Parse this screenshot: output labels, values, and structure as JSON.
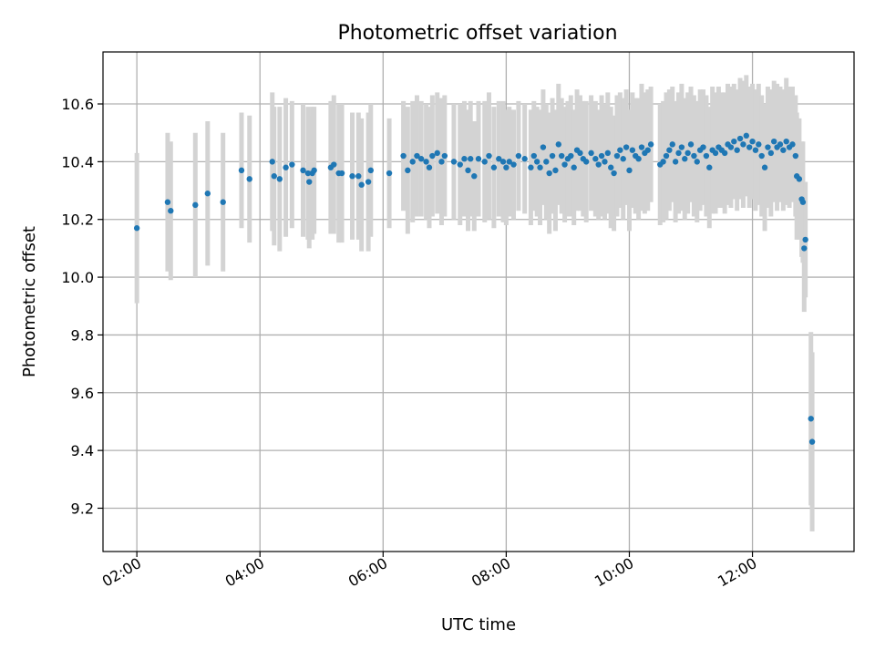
{
  "chart_data": {
    "type": "scatter",
    "title": "Photometric offset variation",
    "xlabel": "UTC time",
    "ylabel": "Photometric offset",
    "x_unit": "hours",
    "xlim": [
      1.45,
      13.65
    ],
    "ylim": [
      9.05,
      10.78
    ],
    "grid": true,
    "x_ticks": [
      {
        "value": 2,
        "label": "02:00"
      },
      {
        "value": 4,
        "label": "04:00"
      },
      {
        "value": 6,
        "label": "06:00"
      },
      {
        "value": 8,
        "label": "08:00"
      },
      {
        "value": 10,
        "label": "10:00"
      },
      {
        "value": 12,
        "label": "12:00"
      }
    ],
    "y_ticks": [
      {
        "value": 9.2,
        "label": "9.2"
      },
      {
        "value": 9.4,
        "label": "9.4"
      },
      {
        "value": 9.6,
        "label": "9.6"
      },
      {
        "value": 9.8,
        "label": "9.8"
      },
      {
        "value": 10.0,
        "label": "10.0"
      },
      {
        "value": 10.2,
        "label": "10.2"
      },
      {
        "value": 10.4,
        "label": "10.4"
      },
      {
        "value": 10.6,
        "label": "10.6"
      }
    ],
    "colors": {
      "marker": "#1f77b4",
      "errorbar": "#d3d3d3",
      "grid": "#b0b0b0",
      "axes": "#000000"
    },
    "series": [
      {
        "name": "offset",
        "x": [
          2.0,
          2.5,
          2.55,
          2.95,
          3.15,
          3.4,
          3.7,
          3.83,
          4.2,
          4.23,
          4.32,
          4.42,
          4.52,
          4.7,
          4.78,
          4.8,
          4.85,
          4.88,
          5.15,
          5.2,
          5.28,
          5.33,
          5.5,
          5.6,
          5.65,
          5.76,
          5.8,
          6.1,
          6.33,
          6.4,
          6.48,
          6.55,
          6.62,
          6.7,
          6.75,
          6.8,
          6.88,
          6.95,
          7.0,
          7.15,
          7.25,
          7.32,
          7.38,
          7.42,
          7.48,
          7.55,
          7.65,
          7.72,
          7.8,
          7.88,
          7.95,
          8.0,
          8.05,
          8.12,
          8.2,
          8.3,
          8.4,
          8.45,
          8.5,
          8.55,
          8.6,
          8.65,
          8.7,
          8.75,
          8.8,
          8.85,
          8.9,
          8.95,
          9.0,
          9.05,
          9.1,
          9.15,
          9.2,
          9.25,
          9.3,
          9.38,
          9.45,
          9.5,
          9.55,
          9.6,
          9.65,
          9.7,
          9.75,
          9.8,
          9.85,
          9.9,
          9.95,
          10.0,
          10.05,
          10.1,
          10.15,
          10.2,
          10.25,
          10.3,
          10.35,
          10.5,
          10.55,
          10.6,
          10.65,
          10.7,
          10.75,
          10.8,
          10.85,
          10.9,
          10.95,
          11.0,
          11.05,
          11.1,
          11.15,
          11.2,
          11.25,
          11.3,
          11.35,
          11.4,
          11.45,
          11.5,
          11.55,
          11.6,
          11.65,
          11.7,
          11.75,
          11.8,
          11.85,
          11.9,
          11.95,
          12.0,
          12.05,
          12.1,
          12.15,
          12.2,
          12.25,
          12.3,
          12.35,
          12.4,
          12.45,
          12.5,
          12.55,
          12.6,
          12.65,
          12.7,
          12.72,
          12.76,
          12.8,
          12.82,
          12.84,
          12.86,
          12.95,
          12.97
        ],
        "y": [
          10.17,
          10.26,
          10.23,
          10.25,
          10.29,
          10.26,
          10.37,
          10.34,
          10.4,
          10.35,
          10.34,
          10.38,
          10.39,
          10.37,
          10.36,
          10.33,
          10.36,
          10.37,
          10.38,
          10.39,
          10.36,
          10.36,
          10.35,
          10.35,
          10.32,
          10.33,
          10.37,
          10.36,
          10.42,
          10.37,
          10.4,
          10.42,
          10.41,
          10.4,
          10.38,
          10.42,
          10.43,
          10.4,
          10.42,
          10.4,
          10.39,
          10.41,
          10.37,
          10.41,
          10.35,
          10.41,
          10.4,
          10.42,
          10.38,
          10.41,
          10.4,
          10.38,
          10.4,
          10.39,
          10.42,
          10.41,
          10.38,
          10.42,
          10.4,
          10.38,
          10.45,
          10.4,
          10.36,
          10.42,
          10.37,
          10.46,
          10.42,
          10.39,
          10.41,
          10.42,
          10.38,
          10.44,
          10.43,
          10.41,
          10.4,
          10.43,
          10.41,
          10.39,
          10.42,
          10.4,
          10.43,
          10.38,
          10.36,
          10.42,
          10.44,
          10.41,
          10.45,
          10.37,
          10.44,
          10.42,
          10.41,
          10.45,
          10.43,
          10.44,
          10.46,
          10.39,
          10.4,
          10.42,
          10.44,
          10.46,
          10.4,
          10.43,
          10.45,
          10.41,
          10.43,
          10.46,
          10.42,
          10.4,
          10.44,
          10.45,
          10.42,
          10.38,
          10.44,
          10.43,
          10.45,
          10.44,
          10.43,
          10.46,
          10.45,
          10.47,
          10.44,
          10.48,
          10.46,
          10.49,
          10.45,
          10.47,
          10.44,
          10.46,
          10.42,
          10.38,
          10.45,
          10.43,
          10.47,
          10.45,
          10.46,
          10.44,
          10.47,
          10.45,
          10.46,
          10.42,
          10.35,
          10.34,
          10.27,
          10.26,
          10.1,
          10.13,
          9.51,
          9.43
        ],
        "yerr": [
          0.26,
          0.24,
          0.24,
          0.25,
          0.25,
          0.24,
          0.2,
          0.22,
          0.24,
          0.24,
          0.25,
          0.24,
          0.22,
          0.23,
          0.23,
          0.23,
          0.23,
          0.22,
          0.23,
          0.24,
          0.24,
          0.24,
          0.22,
          0.22,
          0.23,
          0.24,
          0.23,
          0.19,
          0.19,
          0.22,
          0.21,
          0.21,
          0.2,
          0.2,
          0.21,
          0.21,
          0.21,
          0.22,
          0.21,
          0.2,
          0.21,
          0.2,
          0.21,
          0.2,
          0.19,
          0.2,
          0.21,
          0.22,
          0.21,
          0.2,
          0.21,
          0.2,
          0.19,
          0.19,
          0.19,
          0.19,
          0.2,
          0.19,
          0.19,
          0.2,
          0.2,
          0.2,
          0.21,
          0.2,
          0.21,
          0.21,
          0.2,
          0.2,
          0.2,
          0.21,
          0.2,
          0.21,
          0.2,
          0.2,
          0.21,
          0.2,
          0.2,
          0.19,
          0.21,
          0.2,
          0.21,
          0.21,
          0.2,
          0.21,
          0.2,
          0.21,
          0.2,
          0.21,
          0.2,
          0.2,
          0.21,
          0.22,
          0.21,
          0.21,
          0.2,
          0.21,
          0.21,
          0.22,
          0.21,
          0.2,
          0.21,
          0.21,
          0.22,
          0.21,
          0.21,
          0.2,
          0.21,
          0.21,
          0.21,
          0.2,
          0.21,
          0.21,
          0.22,
          0.21,
          0.21,
          0.2,
          0.21,
          0.21,
          0.21,
          0.2,
          0.21,
          0.21,
          0.22,
          0.21,
          0.21,
          0.2,
          0.21,
          0.21,
          0.21,
          0.22,
          0.21,
          0.22,
          0.21,
          0.22,
          0.2,
          0.21,
          0.22,
          0.21,
          0.2,
          0.21,
          0.22,
          0.21,
          0.2,
          0.21,
          0.22,
          0.2,
          0.3,
          0.31
        ]
      }
    ]
  }
}
